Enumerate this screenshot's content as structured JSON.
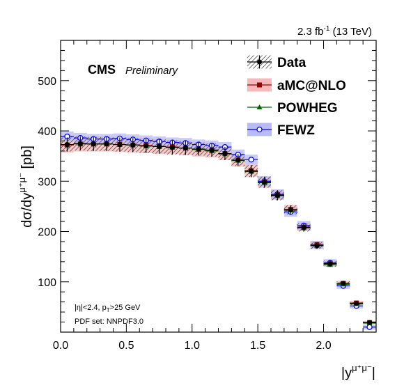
{
  "chart_data": {
    "type": "scatter",
    "lumi": {
      "value": "2.3 fb",
      "sup": "-1",
      "energy": "(13 TeV)"
    },
    "cms_label": "CMS",
    "preliminary_label": "Preliminary",
    "ylabel": {
      "main": "dσ/dy",
      "sup": "μ⁺μ⁻",
      "unit": "[pb]"
    },
    "xlabel": {
      "main": "|y",
      "sup": "μ⁺μ⁻",
      "close": "|"
    },
    "annotations": [
      "|η|<2.4, p",
      "T",
      ">25 GeV",
      "PDF set: NNPDF3.0"
    ],
    "xlim": [
      0,
      2.4
    ],
    "ylim": [
      0,
      580
    ],
    "x_ticks": [
      "0.0",
      "0.5",
      "1.0",
      "1.5",
      "2.0"
    ],
    "y_ticks": [
      "100",
      "200",
      "300",
      "400",
      "500"
    ],
    "x_tick_values": [
      0,
      0.5,
      1.0,
      1.5,
      2.0
    ],
    "y_tick_values": [
      100,
      200,
      300,
      400,
      500
    ],
    "legend_position": "top-right",
    "bin_edges": [
      0,
      0.1,
      0.2,
      0.3,
      0.4,
      0.5,
      0.6,
      0.7,
      0.8,
      0.9,
      1.0,
      1.1,
      1.2,
      1.3,
      1.4,
      1.5,
      1.6,
      1.7,
      1.8,
      1.9,
      2.0,
      2.1,
      2.2,
      2.3,
      2.4
    ],
    "series": [
      {
        "name": "Data",
        "color": "#000000",
        "marker": "filled-circle",
        "values": [
          373,
          375,
          374,
          374,
          373,
          372,
          370,
          369,
          367,
          366,
          364,
          362,
          355,
          342,
          320,
          298,
          272,
          243,
          208,
          172,
          136,
          97,
          57,
          19
        ],
        "uncertainty": [
          14,
          14,
          14,
          14,
          14,
          14,
          14,
          14,
          14,
          14,
          13,
          13,
          13,
          12,
          12,
          11,
          10,
          9,
          8,
          7,
          6,
          4,
          3,
          2
        ]
      },
      {
        "name": "aMC@NLO",
        "color": "#990000",
        "band": "#f6b8b8",
        "marker": "filled-square",
        "values": [
          372,
          374,
          374,
          374,
          373,
          372,
          371,
          369,
          368,
          366,
          363,
          361,
          355,
          342,
          321,
          298,
          273,
          244,
          209,
          174,
          136,
          97,
          58,
          19
        ],
        "uncertainty": [
          15,
          15,
          15,
          15,
          15,
          15,
          15,
          15,
          14,
          14,
          14,
          14,
          13,
          13,
          12,
          11,
          10,
          9,
          8,
          7,
          6,
          5,
          4,
          3
        ]
      },
      {
        "name": "POWHEG",
        "color": "#006600",
        "marker": "filled-triangle",
        "values": [
          373,
          375,
          374,
          374,
          373,
          372,
          370,
          369,
          367,
          366,
          363,
          360,
          354,
          341,
          319,
          297,
          271,
          242,
          207,
          172,
          134,
          95,
          56,
          18
        ],
        "uncertainty": [
          2,
          2,
          2,
          2,
          2,
          2,
          2,
          2,
          2,
          2,
          2,
          2,
          2,
          2,
          2,
          2,
          2,
          2,
          2,
          2,
          2,
          2,
          1,
          1
        ]
      },
      {
        "name": "FEWZ",
        "color": "#0000ee",
        "band": "#b8bbf6",
        "marker": "open-circle",
        "values": [
          389,
          386,
          384,
          384,
          385,
          383,
          381,
          379,
          377,
          376,
          373,
          371,
          368,
          353,
          343,
          300,
          274,
          239,
          212,
          173,
          138,
          92,
          52,
          10
        ],
        "uncertainty": [
          10,
          10,
          10,
          10,
          10,
          10,
          10,
          10,
          10,
          10,
          10,
          10,
          10,
          10,
          10,
          10,
          10,
          10,
          9,
          8,
          7,
          6,
          5,
          5
        ]
      }
    ]
  }
}
